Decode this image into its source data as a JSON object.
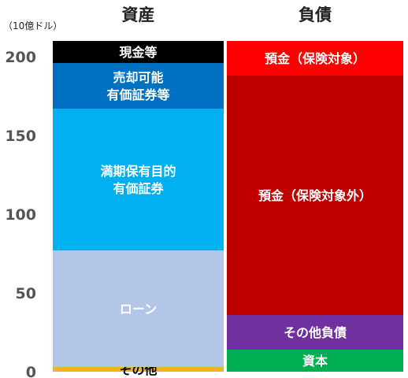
{
  "chart_data": {
    "type": "bar",
    "stacked": true,
    "unit_label": "（10億ドル）",
    "yticks": [
      0,
      50,
      100,
      150,
      200
    ],
    "ylim": [
      0,
      210
    ],
    "grid": false,
    "columns": [
      {
        "heading": "資産",
        "segments": [
          {
            "name": "その他",
            "lines": [
              "その他"
            ],
            "from": 0,
            "to": 3,
            "color": "#f2b41e",
            "text_color": "#000000"
          },
          {
            "name": "ローン",
            "lines": [
              "ローン"
            ],
            "from": 3,
            "to": 77,
            "color": "#b4c6e7",
            "text_color": "#ffffff"
          },
          {
            "name": "満期保有目的有価証券",
            "lines": [
              "満期保有目的",
              "有価証券"
            ],
            "from": 77,
            "to": 167,
            "color": "#00b0f0",
            "text_color": "#ffffff"
          },
          {
            "name": "売却可能有価証券等",
            "lines": [
              "売却可能",
              "有価証券等"
            ],
            "from": 167,
            "to": 196,
            "color": "#0070c0",
            "text_color": "#ffffff"
          },
          {
            "name": "現金等",
            "lines": [
              "現金等"
            ],
            "from": 196,
            "to": 210,
            "color": "#000000",
            "text_color": "#ffffff"
          }
        ]
      },
      {
        "heading": "負債",
        "segments": [
          {
            "name": "資本",
            "lines": [
              "資本"
            ],
            "from": 0,
            "to": 14,
            "color": "#00b050",
            "text_color": "#ffffff"
          },
          {
            "name": "その他負債",
            "lines": [
              "その他負債"
            ],
            "from": 14,
            "to": 36,
            "color": "#7030a0",
            "text_color": "#ffffff"
          },
          {
            "name": "預金（保険対象外）",
            "lines": [
              "預金（保険対象外）"
            ],
            "from": 36,
            "to": 188,
            "color": "#c00000",
            "text_color": "#ffffff"
          },
          {
            "name": "預金（保険対象）",
            "lines": [
              "預金（保険対象）"
            ],
            "from": 188,
            "to": 210,
            "color": "#ff0000",
            "text_color": "#ffffff"
          }
        ]
      }
    ]
  }
}
